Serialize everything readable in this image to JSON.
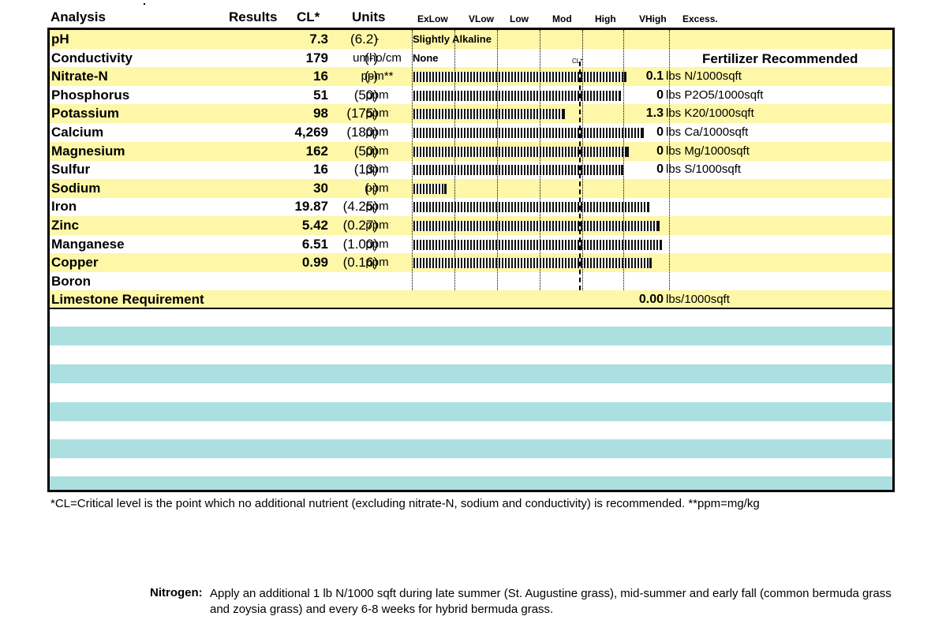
{
  "headers": {
    "analysis": "Analysis",
    "results": "Results",
    "cl": "CL*",
    "units": "Units",
    "levels": [
      "ExLow",
      "VLow",
      "Low",
      "Mod",
      "High",
      "VHigh",
      "Excess."
    ]
  },
  "cl_mark": "CL*",
  "fert_header": "Fertilizer Recommended",
  "rows": [
    {
      "name": "pH",
      "result": "7.3",
      "cl": "(6.2)",
      "unit": "-",
      "interp": "Slightly Alkaline",
      "level": null,
      "fert_amt": "",
      "fert_unit": ""
    },
    {
      "name": "Conductivity",
      "result": "179",
      "cl": "(-)",
      "unit": "umho/cm",
      "interp": "None",
      "level": null,
      "fert_amt": "",
      "fert_unit": ""
    },
    {
      "name": "Nitrate-N",
      "result": "16",
      "cl": "(-)",
      "unit": "ppm**",
      "interp": "",
      "level": 0.82,
      "fert_amt": "0.1",
      "fert_unit": "lbs N/1000sqft"
    },
    {
      "name": "Phosphorus",
      "result": "51",
      "cl": "(50)",
      "unit": "ppm",
      "interp": "",
      "level": 0.8,
      "fert_amt": "0",
      "fert_unit": "lbs P2O5/1000sqft"
    },
    {
      "name": "Potassium",
      "result": "98",
      "cl": "(175)",
      "unit": "ppm",
      "interp": "",
      "level": 0.58,
      "fert_amt": "1.3",
      "fert_unit": "lbs K20/1000sqft"
    },
    {
      "name": "Calcium",
      "result": "4,269",
      "cl": "(180)",
      "unit": "ppm",
      "interp": "",
      "level": 0.89,
      "fert_amt": "0",
      "fert_unit": "lbs Ca/1000sqft"
    },
    {
      "name": "Magnesium",
      "result": "162",
      "cl": "(50)",
      "unit": "ppm",
      "interp": "",
      "level": 0.83,
      "fert_amt": "0",
      "fert_unit": "lbs Mg/1000sqft"
    },
    {
      "name": "Sulfur",
      "result": "16",
      "cl": "(13)",
      "unit": "ppm",
      "interp": "",
      "level": 0.81,
      "fert_amt": "0",
      "fert_unit": "lbs S/1000sqft"
    },
    {
      "name": "Sodium",
      "result": "30",
      "cl": "(-)",
      "unit": "ppm",
      "interp": "",
      "level": 0.12,
      "fert_amt": "",
      "fert_unit": ""
    },
    {
      "name": "Iron",
      "result": "19.87",
      "cl": "(4.25)",
      "unit": "ppm",
      "interp": "",
      "level": 0.91,
      "fert_amt": "",
      "fert_unit": ""
    },
    {
      "name": "Zinc",
      "result": "5.42",
      "cl": "(0.27)",
      "unit": "ppm",
      "interp": "",
      "level": 0.95,
      "fert_amt": "",
      "fert_unit": ""
    },
    {
      "name": "Manganese",
      "result": "6.51",
      "cl": "(1.00)",
      "unit": "ppm",
      "interp": "",
      "level": 0.96,
      "fert_amt": "",
      "fert_unit": ""
    },
    {
      "name": "Copper",
      "result": "0.99",
      "cl": "(0.16)",
      "unit": "ppm",
      "interp": "",
      "level": 0.92,
      "fert_amt": "",
      "fert_unit": ""
    },
    {
      "name": "Boron",
      "result": "",
      "cl": "",
      "unit": "",
      "interp": "",
      "level": null,
      "fert_amt": "",
      "fert_unit": ""
    },
    {
      "name": "Limestone Requirement",
      "result": "",
      "cl": "",
      "unit": "",
      "interp": "",
      "level": null,
      "fert_amt": "0.00",
      "fert_unit": "lbs/1000sqft"
    }
  ],
  "footnote": "*CL=Critical level is the point which no additional nutrient (excluding nitrate-N, sodium and conductivity) is recommended. **ppm=mg/kg",
  "recommendation": {
    "label": "Nitrogen:",
    "text": "Apply an additional 1 lb N/1000 sqft during late summer (St. Augustine grass), mid-summer and early fall (common bermuda grass and zoysia grass) and every 6-8 weeks for hybrid bermuda grass."
  }
}
